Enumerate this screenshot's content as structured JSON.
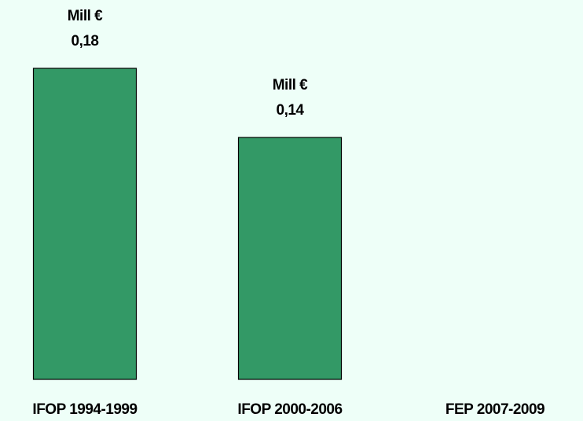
{
  "chart_data": {
    "type": "bar",
    "categories": [
      "IFOP 1994-1999",
      "IFOP 2000-2006",
      "FEP 2007-2009"
    ],
    "values": [
      0.18,
      0.14,
      null
    ],
    "value_labels": [
      "0,18",
      "0,14",
      null
    ],
    "value_unit": "Mill €",
    "color": "#339966"
  }
}
